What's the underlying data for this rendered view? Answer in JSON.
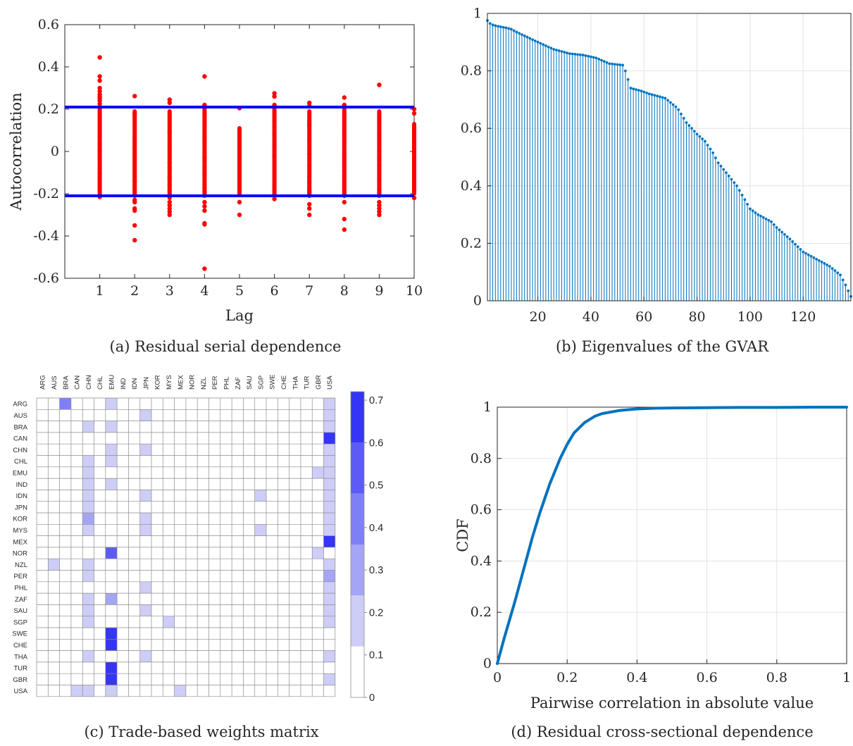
{
  "chart_data": [
    {
      "panel": "a",
      "type": "scatter",
      "caption": "(a) Residual serial dependence",
      "xlabel": "Lag",
      "ylabel": "Autocorrelation",
      "xlim": [
        0,
        10
      ],
      "ylim": [
        -0.6,
        0.6
      ],
      "xticks": [
        1,
        2,
        3,
        4,
        5,
        6,
        7,
        8,
        9,
        10
      ],
      "yticks": [
        -0.6,
        -0.4,
        -0.2,
        0,
        0.2,
        0.4,
        0.6
      ],
      "ytick_labels": [
        "-0.6",
        "-0.4",
        "-0.2",
        "0",
        "0.2",
        "0.4",
        "0.6"
      ],
      "grid": false,
      "point_color": "#ff0000",
      "line_color": "#0000ff",
      "confidence_bands": [
        0.21,
        -0.21
      ],
      "lags": [
        {
          "lag": 1,
          "core": [
            -0.2,
            0.21
          ],
          "outliers": [
            0.445,
            0.355,
            0.335,
            0.3,
            0.285,
            0.27,
            0.26,
            0.25,
            0.24,
            0.225,
            -0.215
          ]
        },
        {
          "lag": 2,
          "core": [
            -0.21,
            0.19
          ],
          "outliers": [
            0.262,
            -0.23,
            -0.24,
            -0.27,
            -0.28,
            -0.35,
            -0.42
          ]
        },
        {
          "lag": 3,
          "core": [
            -0.22,
            0.19
          ],
          "outliers": [
            0.245,
            0.23,
            -0.24,
            -0.255,
            -0.27,
            -0.285,
            -0.3
          ]
        },
        {
          "lag": 4,
          "core": [
            -0.21,
            0.2
          ],
          "outliers": [
            0.355,
            0.22,
            -0.24,
            -0.26,
            -0.28,
            -0.34,
            -0.345,
            -0.555
          ]
        },
        {
          "lag": 5,
          "core": [
            -0.2,
            0.11
          ],
          "outliers": [
            0.205,
            -0.24,
            -0.3
          ]
        },
        {
          "lag": 6,
          "core": [
            -0.21,
            0.2
          ],
          "outliers": [
            0.275,
            0.26,
            0.22,
            -0.225
          ]
        },
        {
          "lag": 7,
          "core": [
            -0.21,
            0.19
          ],
          "outliers": [
            0.23,
            0.215,
            -0.25,
            -0.27,
            -0.3
          ]
        },
        {
          "lag": 8,
          "core": [
            -0.21,
            0.2
          ],
          "outliers": [
            0.255,
            0.22,
            -0.24,
            -0.32,
            -0.37
          ]
        },
        {
          "lag": 9,
          "core": [
            -0.21,
            0.19
          ],
          "outliers": [
            0.315,
            -0.24,
            -0.255,
            -0.27,
            -0.285,
            -0.3
          ]
        },
        {
          "lag": 10,
          "core": [
            -0.2,
            0.13
          ],
          "outliers": [
            0.2,
            0.18,
            -0.22
          ]
        }
      ]
    },
    {
      "panel": "b",
      "type": "stem",
      "caption": "(b) Eigenvalues of the GVAR",
      "xlim": [
        1,
        138
      ],
      "ylim": [
        0,
        1
      ],
      "xticks": [
        20,
        40,
        60,
        80,
        100,
        120
      ],
      "yticks": [
        0,
        0.2,
        0.4,
        0.6,
        0.8,
        1
      ],
      "grid": true,
      "color": "#0072bd",
      "n_points": 138,
      "x_anchor": [
        1,
        2,
        3,
        5,
        8,
        10,
        12,
        20,
        26,
        32,
        37,
        42,
        47,
        52,
        53,
        55,
        59,
        62,
        68,
        72,
        73,
        76,
        80,
        83,
        86,
        88,
        95,
        100,
        103,
        108,
        110,
        115,
        120,
        124,
        130,
        134,
        136,
        137,
        138
      ],
      "y_anchor": [
        0.975,
        0.965,
        0.96,
        0.955,
        0.95,
        0.945,
        0.935,
        0.9,
        0.875,
        0.86,
        0.855,
        0.845,
        0.825,
        0.82,
        0.8,
        0.74,
        0.73,
        0.72,
        0.705,
        0.675,
        0.665,
        0.62,
        0.58,
        0.555,
        0.515,
        0.48,
        0.4,
        0.32,
        0.3,
        0.275,
        0.255,
        0.215,
        0.17,
        0.15,
        0.12,
        0.09,
        0.055,
        0.035,
        0.015
      ]
    },
    {
      "panel": "c",
      "type": "heatmap",
      "caption": "(c) Trade-based weights matrix",
      "rows": [
        "ARG",
        "AUS",
        "BRA",
        "CAN",
        "CHN",
        "CHL",
        "EMU",
        "IND",
        "IDN",
        "JPN",
        "KOR",
        "MYS",
        "MEX",
        "NOR",
        "NZL",
        "PER",
        "PHL",
        "ZAF",
        "SAU",
        "SGP",
        "SWE",
        "CHE",
        "THA",
        "TUR",
        "GBR",
        "USA"
      ],
      "columns": [
        "ARG",
        "AUS",
        "BRA",
        "CAN",
        "CHN",
        "CHL",
        "EMU",
        "IND",
        "IDN",
        "JPN",
        "KOR",
        "MYS",
        "MEX",
        "NOR",
        "NZL",
        "PER",
        "PHL",
        "ZAF",
        "SAU",
        "SGP",
        "SWE",
        "CHE",
        "THA",
        "TUR",
        "GBR",
        "USA"
      ],
      "colorbar": {
        "min": 0,
        "max": 0.72,
        "ticks": [
          0,
          0.1,
          0.2,
          0.3,
          0.4,
          0.5,
          0.6,
          0.7
        ],
        "bins": [
          0,
          0.12,
          0.24,
          0.36,
          0.48,
          0.6,
          0.72
        ]
      },
      "palette": [
        "#ffffff",
        "#cdcdf7",
        "#a5a5f5",
        "#8080f5",
        "#5c5cf5",
        "#3535f5",
        "#0000ff"
      ],
      "cells": [
        [
          "ARG",
          "BRA",
          0.4
        ],
        [
          "ARG",
          "EMU",
          0.2
        ],
        [
          "ARG",
          "USA",
          0.15
        ],
        [
          "AUS",
          "JPN",
          0.15
        ],
        [
          "AUS",
          "USA",
          0.15
        ],
        [
          "BRA",
          "CHN",
          0.15
        ],
        [
          "BRA",
          "EMU",
          0.15
        ],
        [
          "BRA",
          "USA",
          0.15
        ],
        [
          "CAN",
          "USA",
          0.7
        ],
        [
          "CHN",
          "EMU",
          0.15
        ],
        [
          "CHN",
          "JPN",
          0.15
        ],
        [
          "CHN",
          "USA",
          0.15
        ],
        [
          "CHL",
          "CHN",
          0.15
        ],
        [
          "CHL",
          "EMU",
          0.15
        ],
        [
          "CHL",
          "USA",
          0.15
        ],
        [
          "EMU",
          "CHN",
          0.15
        ],
        [
          "EMU",
          "GBR",
          0.15
        ],
        [
          "EMU",
          "USA",
          0.15
        ],
        [
          "IND",
          "CHN",
          0.15
        ],
        [
          "IND",
          "EMU",
          0.15
        ],
        [
          "IND",
          "USA",
          0.15
        ],
        [
          "IDN",
          "CHN",
          0.15
        ],
        [
          "IDN",
          "JPN",
          0.15
        ],
        [
          "IDN",
          "SGP",
          0.15
        ],
        [
          "IDN",
          "USA",
          0.15
        ],
        [
          "JPN",
          "CHN",
          0.15
        ],
        [
          "JPN",
          "USA",
          0.15
        ],
        [
          "KOR",
          "CHN",
          0.3
        ],
        [
          "KOR",
          "JPN",
          0.15
        ],
        [
          "KOR",
          "USA",
          0.15
        ],
        [
          "MYS",
          "CHN",
          0.15
        ],
        [
          "MYS",
          "JPN",
          0.15
        ],
        [
          "MYS",
          "SGP",
          0.15
        ],
        [
          "MYS",
          "USA",
          0.15
        ],
        [
          "MEX",
          "USA",
          0.7
        ],
        [
          "NOR",
          "EMU",
          0.5
        ],
        [
          "NOR",
          "GBR",
          0.15
        ],
        [
          "NZL",
          "AUS",
          0.15
        ],
        [
          "NZL",
          "CHN",
          0.15
        ],
        [
          "NZL",
          "USA",
          0.15
        ],
        [
          "PER",
          "CHN",
          0.15
        ],
        [
          "PER",
          "USA",
          0.3
        ],
        [
          "PHL",
          "JPN",
          0.15
        ],
        [
          "PHL",
          "USA",
          0.15
        ],
        [
          "ZAF",
          "CHN",
          0.15
        ],
        [
          "ZAF",
          "EMU",
          0.3
        ],
        [
          "ZAF",
          "USA",
          0.15
        ],
        [
          "SAU",
          "CHN",
          0.15
        ],
        [
          "SAU",
          "JPN",
          0.15
        ],
        [
          "SAU",
          "USA",
          0.15
        ],
        [
          "SGP",
          "CHN",
          0.15
        ],
        [
          "SGP",
          "MYS",
          0.15
        ],
        [
          "SGP",
          "USA",
          0.15
        ],
        [
          "SWE",
          "EMU",
          0.7
        ],
        [
          "CHE",
          "EMU",
          0.7
        ],
        [
          "THA",
          "CHN",
          0.15
        ],
        [
          "THA",
          "JPN",
          0.15
        ],
        [
          "THA",
          "USA",
          0.15
        ],
        [
          "TUR",
          "EMU",
          0.7
        ],
        [
          "GBR",
          "EMU",
          0.7
        ],
        [
          "GBR",
          "USA",
          0.15
        ],
        [
          "USA",
          "CAN",
          0.15
        ],
        [
          "USA",
          "CHN",
          0.15
        ],
        [
          "USA",
          "EMU",
          0.15
        ],
        [
          "USA",
          "MEX",
          0.15
        ]
      ]
    },
    {
      "panel": "d",
      "type": "line",
      "caption": "(d) Residual cross-sectional dependence",
      "xlabel": "Pairwise correlation in absolute value",
      "ylabel": "CDF",
      "xlim": [
        0,
        1
      ],
      "ylim": [
        0,
        1
      ],
      "xticks": [
        0,
        0.2,
        0.4,
        0.6,
        0.8,
        1
      ],
      "yticks": [
        0,
        0.2,
        0.4,
        0.6,
        0.8,
        1
      ],
      "grid": true,
      "color": "#0072bd",
      "x": [
        0,
        0.02,
        0.05,
        0.08,
        0.1,
        0.12,
        0.15,
        0.18,
        0.2,
        0.22,
        0.25,
        0.28,
        0.3,
        0.35,
        0.4,
        0.45,
        0.5,
        0.6,
        0.7,
        0.8,
        0.9,
        1.0
      ],
      "y": [
        0,
        0.1,
        0.24,
        0.39,
        0.49,
        0.58,
        0.7,
        0.8,
        0.855,
        0.9,
        0.94,
        0.965,
        0.975,
        0.987,
        0.993,
        0.996,
        0.997,
        0.998,
        0.999,
        0.999,
        1.0,
        1.0
      ]
    }
  ]
}
